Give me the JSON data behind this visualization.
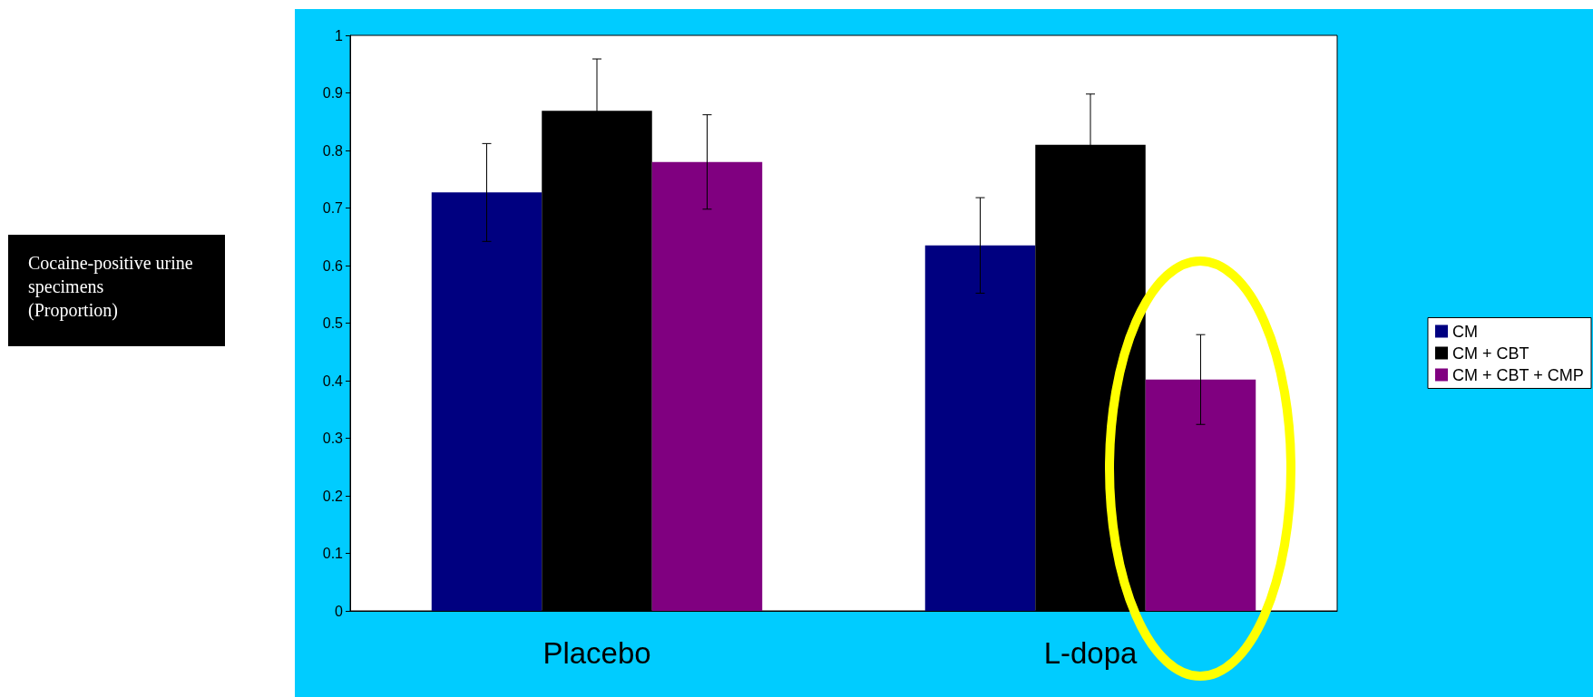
{
  "chart_data": {
    "type": "bar",
    "annotations": [
      "Cocaine-positive urine specimens (Proportion)"
    ],
    "categories": [
      "Placebo",
      "L-dopa"
    ],
    "series": [
      {
        "name": "CM",
        "color": "#000080",
        "values": [
          0.727,
          0.635
        ],
        "errors": [
          0.085,
          0.083
        ]
      },
      {
        "name": "CM + CBT",
        "color": "#000000",
        "values": [
          0.869,
          0.81
        ],
        "errors": [
          0.09,
          0.088
        ]
      },
      {
        "name": "CM + CBT + CMP",
        "color": "#800080",
        "values": [
          0.78,
          0.402
        ],
        "errors": [
          0.082,
          0.078
        ]
      }
    ],
    "ylim": [
      0,
      1
    ],
    "yticks": [
      0,
      0.1,
      0.2,
      0.3,
      0.4,
      0.5,
      0.6,
      0.7,
      0.8,
      0.9,
      1
    ],
    "grid": false,
    "legend": "right"
  }
}
